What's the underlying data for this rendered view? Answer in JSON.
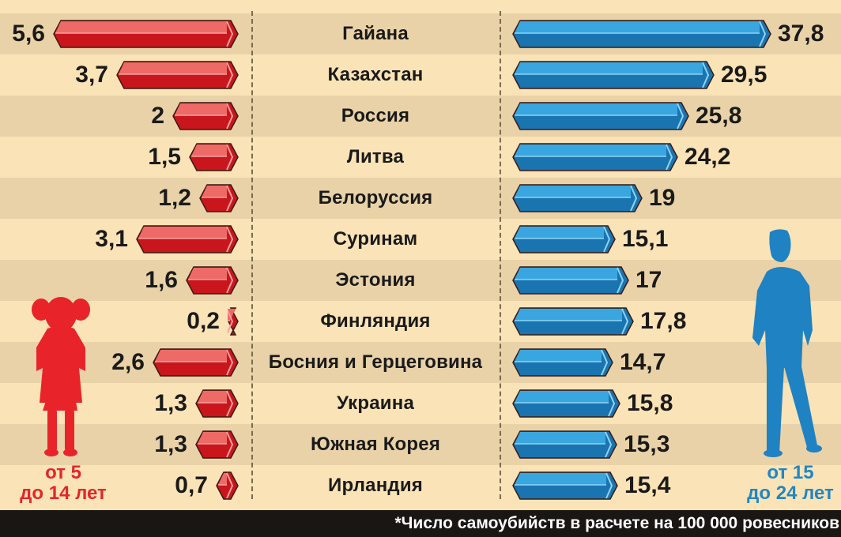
{
  "chart_data": {
    "type": "bar",
    "orientation": "horizontal-butterfly",
    "title": "",
    "categories": [
      "Гайана",
      "Казахстан",
      "Россия",
      "Литва",
      "Белоруссия",
      "Суринам",
      "Эстония",
      "Финляндия",
      "Босния и Герцеговина",
      "Украина",
      "Южная Корея",
      "Ирландия"
    ],
    "series": [
      {
        "name": "от 5 до 14 лет",
        "color": "#d8262b",
        "values": [
          5.6,
          3.7,
          2,
          1.5,
          1.2,
          3.1,
          1.6,
          0.2,
          2.6,
          1.3,
          1.3,
          0.7
        ]
      },
      {
        "name": "от 15 до 24 лет",
        "color": "#1f82c2",
        "values": [
          37.8,
          29.5,
          25.8,
          24.2,
          19,
          15.1,
          17,
          17.8,
          14.7,
          15.8,
          15.3,
          15.4
        ]
      }
    ],
    "value_labels_left": [
      "5,6",
      "3,7",
      "2",
      "1,5",
      "1,2",
      "3,1",
      "1,6",
      "0,2",
      "2,6",
      "1,3",
      "1,3",
      "0,7"
    ],
    "value_labels_right": [
      "37,8",
      "29,5",
      "25,8",
      "24,2",
      "19",
      "15,1",
      "17",
      "17,8",
      "14,7",
      "15,8",
      "15,3",
      "15,4"
    ],
    "legend": [
      {
        "label_line1": "от 5",
        "label_line2": "до 14 лет",
        "position": "bottom-left",
        "icon": "girl-silhouette"
      },
      {
        "label_line1": "от 15",
        "label_line2": "до 24 лет",
        "position": "bottom-right",
        "icon": "young-man-silhouette"
      }
    ],
    "footnote": "*Число самоубийств в расчете на 100 000 ровесников",
    "grid": false,
    "xlabel": "",
    "ylabel": ""
  },
  "labels": {
    "left_age_line1": "от 5",
    "left_age_line2": "до 14 лет",
    "right_age_line1": "от 15",
    "right_age_line2": "до 24 лет",
    "footnote": "*Число самоубийств в расчете на 100 000 ровесников"
  },
  "colors": {
    "background": "#fae3b6",
    "stripe_dark": "#e9d2a8",
    "red": "#d8262b",
    "red_light": "#ee6a66",
    "blue": "#1f82c2",
    "blue_light": "#3aa6e0",
    "footer": "#1a1614"
  }
}
